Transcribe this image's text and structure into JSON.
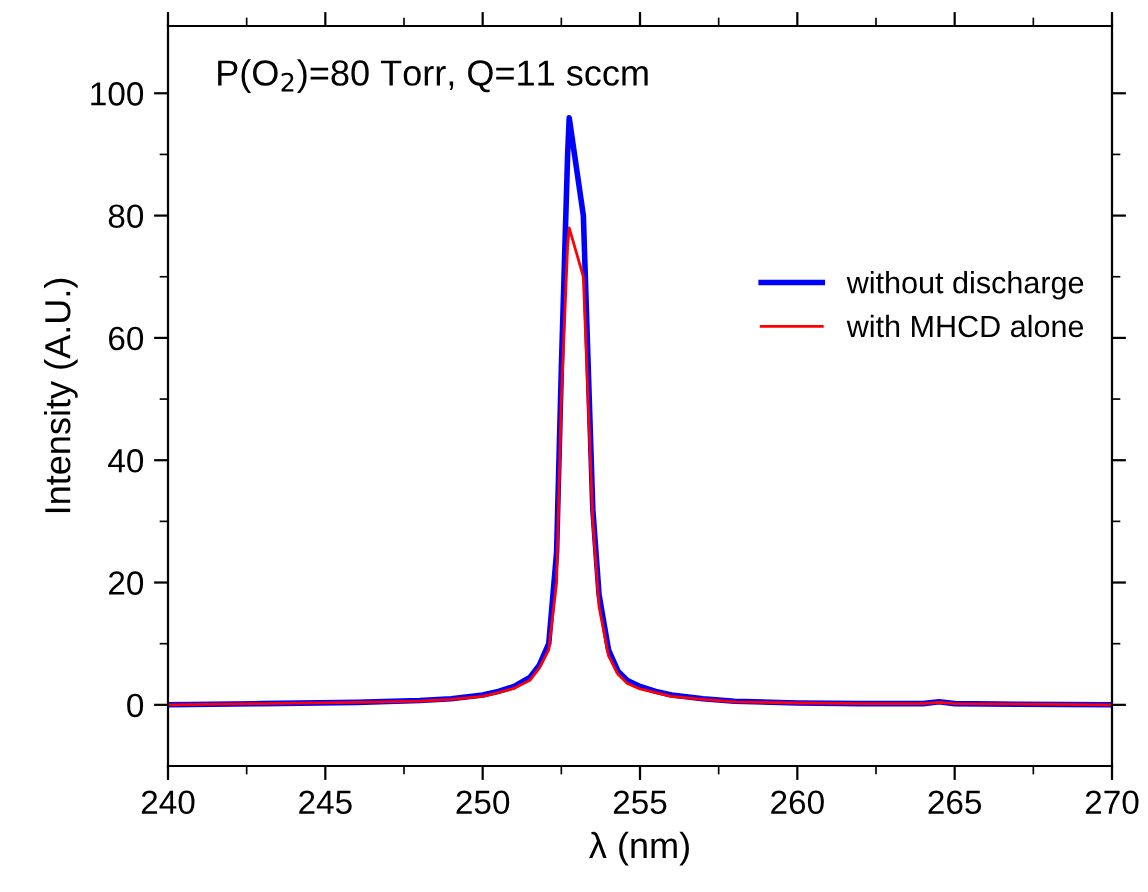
{
  "chart_data": {
    "type": "line",
    "xlabel": "λ (nm)",
    "ylabel": "Intensity (A.U.)",
    "annotations": [
      "P(O$_{2}$)=80 Torr, Q=11 sccm"
    ],
    "xlim": [
      240,
      270
    ],
    "xticks": [
      240,
      245,
      250,
      255,
      260,
      265,
      270
    ],
    "ylim": [
      -10,
      111
    ],
    "yticks": [
      0,
      20,
      40,
      60,
      80,
      100
    ],
    "legend": "center right",
    "grid": false,
    "marker": "none",
    "line_style": "solid",
    "series": [
      {
        "name": "without discharge",
        "color": "#0000ff",
        "x": [
          240,
          243,
          246,
          248,
          249,
          250,
          250.5,
          251,
          251.5,
          251.8,
          252.1,
          252.35,
          252.5,
          252.7,
          252.75,
          253.2,
          253.5,
          253.7,
          254,
          254.3,
          254.6,
          255,
          255.5,
          256,
          257,
          258,
          260,
          262,
          264,
          264.5,
          265,
          267,
          270
        ],
        "values": [
          0,
          0.2,
          0.4,
          0.7,
          1.0,
          1.6,
          2.2,
          3.0,
          4.5,
          6.5,
          10,
          25,
          55,
          90,
          96,
          80,
          32,
          18,
          9,
          5.5,
          4,
          3,
          2.2,
          1.6,
          1.0,
          0.6,
          0.3,
          0.2,
          0.2,
          0.5,
          0.2,
          0.1,
          0
        ]
      },
      {
        "name": "with MHCD alone",
        "color": "#ff0000",
        "x": [
          240,
          243,
          246,
          248,
          249,
          250,
          250.5,
          251,
          251.5,
          251.8,
          252.1,
          252.35,
          252.5,
          252.7,
          252.75,
          253.2,
          253.5,
          253.7,
          254,
          254.3,
          254.6,
          255,
          255.5,
          256,
          257,
          258,
          260,
          262,
          264,
          264.5,
          265,
          267,
          270
        ],
        "values": [
          0,
          0.2,
          0.4,
          0.6,
          0.9,
          1.4,
          2.0,
          2.7,
          4.0,
          6.0,
          9,
          20,
          50,
          75,
          78,
          70,
          30,
          16,
          8,
          5,
          3.5,
          2.6,
          2.0,
          1.4,
          0.9,
          0.5,
          0.3,
          0.2,
          0.2,
          0.4,
          0.2,
          0.1,
          0
        ]
      }
    ]
  }
}
